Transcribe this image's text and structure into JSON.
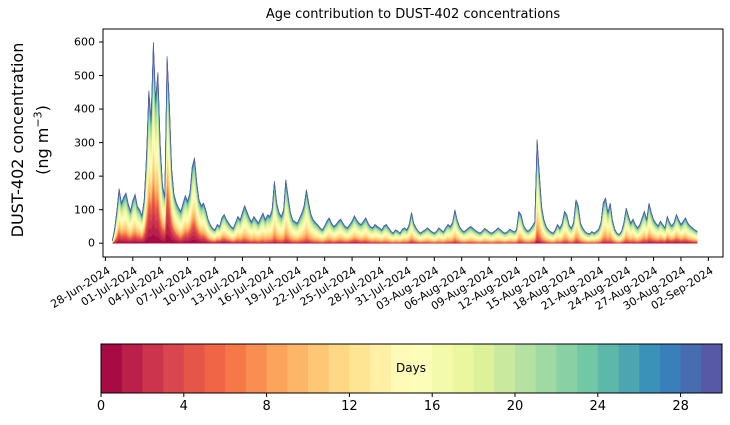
{
  "title": "Age contribution to DUST-402 concentrations",
  "ylabel": {
    "line1": "DUST-402 concentration",
    "line2_pre": "(ng m",
    "line2_sup": "−3",
    "line2_post": ")"
  },
  "colorbar": {
    "label": "Days",
    "ticks": [
      0,
      4,
      8,
      12,
      16,
      20,
      24,
      28
    ],
    "vmin": 0,
    "vmax": 30,
    "n_bins": 30,
    "cmap_name": "Spectral",
    "cmap_anchors": [
      "#9e0142",
      "#d53e4f",
      "#f46d43",
      "#fdae61",
      "#fee08b",
      "#ffffbf",
      "#e6f598",
      "#abdda4",
      "#66c2a5",
      "#3288bd",
      "#5e4fa2"
    ]
  },
  "chart_data": {
    "type": "area",
    "subtype": "stacked-area-by-age",
    "title": "Age contribution to DUST-402 concentrations",
    "xlabel": "",
    "ylabel": "DUST-402 concentration (ng m-3)",
    "grid": false,
    "legend": "none (colorbar only)",
    "ylim": [
      -41,
      639
    ],
    "yticks": [
      0,
      100,
      200,
      300,
      400,
      500,
      600
    ],
    "xtick_labels": [
      "28-Jun-2024",
      "01-Jul-2024",
      "04-Jul-2024",
      "07-Jul-2024",
      "10-Jul-2024",
      "13-Jul-2024",
      "16-Jul-2024",
      "19-Jul-2024",
      "22-Jul-2024",
      "25-Jul-2024",
      "28-Jul-2024",
      "31-Jul-2024",
      "03-Aug-2024",
      "06-Aug-2024",
      "09-Aug-2024",
      "12-Aug-2024",
      "15-Aug-2024",
      "18-Aug-2024",
      "21-Aug-2024",
      "24-Aug-2024",
      "27-Aug-2024",
      "30-Aug-2024",
      "02-Sep-2024"
    ],
    "xtick_interval_days": 3,
    "x_origin_label": "28-Jun-2024",
    "x_start_day": 0.75,
    "x_step_days": 0.25,
    "total_concentration": [
      8,
      40,
      95,
      163,
      120,
      138,
      150,
      118,
      96,
      128,
      146,
      110,
      100,
      82,
      130,
      260,
      455,
      372,
      600,
      430,
      510,
      295,
      172,
      140,
      558,
      415,
      225,
      148,
      122,
      106,
      95,
      120,
      142,
      126,
      150,
      228,
      255,
      180,
      130,
      112,
      120,
      98,
      70,
      54,
      44,
      40,
      56,
      50,
      76,
      86,
      70,
      60,
      50,
      44,
      62,
      80,
      70,
      92,
      112,
      94,
      76,
      64,
      80,
      70,
      60,
      76,
      90,
      70,
      85,
      80,
      100,
      185,
      120,
      92,
      80,
      100,
      190,
      140,
      92,
      70,
      64,
      60,
      75,
      90,
      112,
      160,
      120,
      86,
      70,
      62,
      55,
      46,
      40,
      52,
      66,
      76,
      60,
      50,
      56,
      66,
      72,
      60,
      50,
      46,
      56,
      66,
      82,
      70,
      60,
      56,
      66,
      76,
      60,
      50,
      46,
      56,
      50,
      46,
      40,
      52,
      56,
      46,
      36,
      30,
      40,
      36,
      30,
      42,
      46,
      40,
      56,
      92,
      60,
      46,
      36,
      30,
      36,
      40,
      46,
      40,
      34,
      30,
      36,
      46,
      40,
      34,
      46,
      56,
      50,
      62,
      100,
      70,
      50,
      40,
      34,
      40,
      46,
      50,
      44,
      38,
      34,
      30,
      36,
      44,
      40,
      34,
      30,
      34,
      40,
      46,
      40,
      34,
      30,
      34,
      42,
      38,
      34,
      40,
      95,
      85,
      55,
      42,
      36,
      42,
      52,
      64,
      310,
      205,
      110,
      70,
      50,
      40,
      34,
      30,
      40,
      56,
      45,
      60,
      95,
      85,
      55,
      45,
      62,
      130,
      112,
      60,
      45,
      35,
      30,
      28,
      35,
      30,
      36,
      42,
      62,
      122,
      135,
      92,
      120,
      70,
      42,
      30,
      26,
      36,
      62,
      105,
      82,
      60,
      72,
      56,
      46,
      56,
      76,
      95,
      70,
      120,
      92,
      70,
      60,
      52,
      66,
      56,
      46,
      80,
      62,
      52,
      62,
      86,
      70,
      56,
      66,
      76,
      60,
      52,
      46,
      40,
      36
    ],
    "age_fraction_young_breakpoints": [
      [
        0.75,
        0.3
      ],
      [
        1.5,
        0.4
      ],
      [
        2.5,
        0.32
      ],
      [
        4,
        0.4
      ],
      [
        5,
        0.55
      ],
      [
        6,
        0.45
      ],
      [
        6.75,
        0.55
      ],
      [
        7.5,
        0.5
      ],
      [
        8.25,
        0.35
      ],
      [
        9.25,
        0.5
      ],
      [
        10.25,
        0.45
      ],
      [
        11.5,
        0.28
      ],
      [
        12.5,
        0.34
      ],
      [
        13.5,
        0.3
      ],
      [
        14.5,
        0.2
      ],
      [
        16,
        0.14
      ],
      [
        18,
        0.12
      ],
      [
        20,
        0.14
      ],
      [
        22,
        0.11
      ],
      [
        24,
        0.14
      ],
      [
        26,
        0.18
      ],
      [
        27.5,
        0.26
      ],
      [
        29,
        0.15
      ],
      [
        31,
        0.1
      ],
      [
        33,
        0.13
      ],
      [
        34,
        0.18
      ],
      [
        36,
        0.1
      ],
      [
        38,
        0.12
      ],
      [
        40,
        0.09
      ],
      [
        42,
        0.08
      ],
      [
        44,
        0.11
      ],
      [
        46,
        0.1
      ],
      [
        47.5,
        0.14
      ],
      [
        49,
        0.09
      ],
      [
        51,
        0.11
      ],
      [
        53,
        0.09
      ],
      [
        55,
        0.11
      ],
      [
        57,
        0.14
      ],
      [
        59,
        0.2
      ],
      [
        60.5,
        0.28
      ],
      [
        62,
        0.34
      ],
      [
        63.5,
        0.3
      ],
      [
        64.75,
        0.26
      ]
    ],
    "age_model": {
      "n_age_bins": 30,
      "young_mu": 1.2,
      "young_sigma": 2.2,
      "old_mu": 15.0,
      "old_sigma": 6.5
    }
  }
}
